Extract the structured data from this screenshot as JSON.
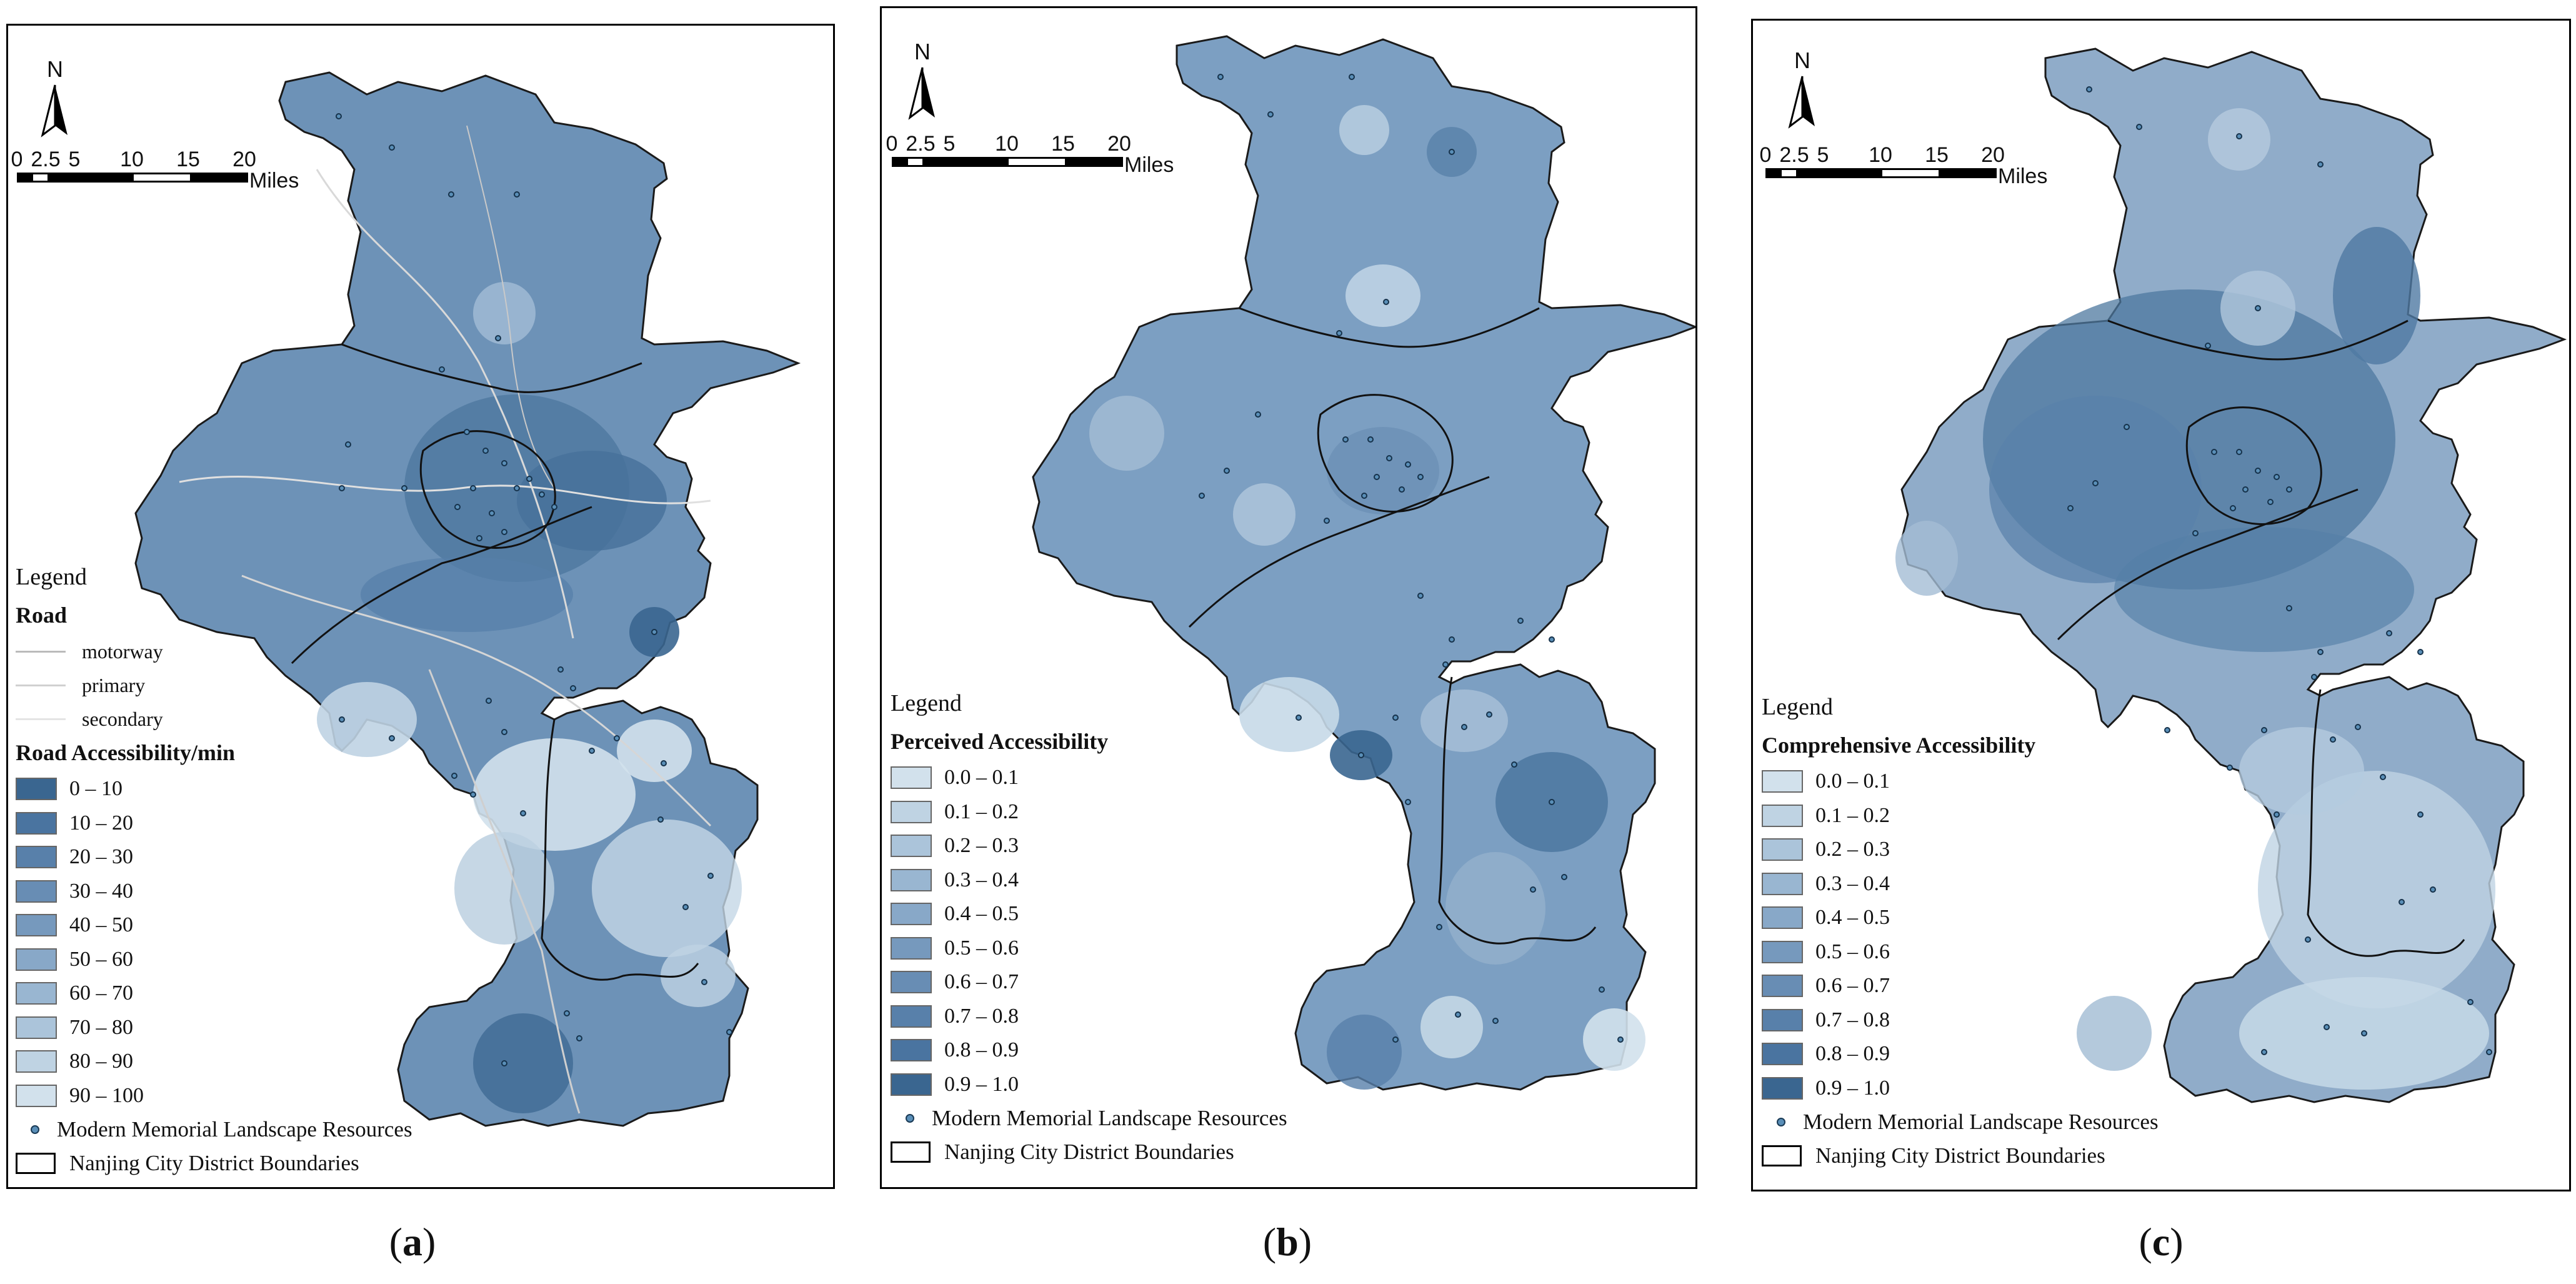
{
  "map_common": {
    "north_label": "N",
    "scale_ticks": [
      "0",
      "2.5",
      "5",
      "10",
      "15",
      "20"
    ],
    "scale_unit": "Miles",
    "legend_title": "Legend",
    "points_label": "Modern Memorial Landscape Resources",
    "boundary_label": "Nanjing City District Boundaries"
  },
  "panels": [
    {
      "caption_letter": "a",
      "road_title": "Road",
      "road_types": [
        "motorway",
        "primary",
        "secondary"
      ],
      "classes_title": "Road Accessibility/min",
      "classes": [
        "0 – 10",
        "10 – 20",
        "20 – 30",
        "30 – 40",
        "40 – 50",
        "50 – 60",
        "60 – 70",
        "70 – 80",
        "80 – 90",
        "90 – 100"
      ],
      "colors": [
        "#3a6690",
        "#4a74a0",
        "#5880aa",
        "#688db4",
        "#7699bd",
        "#88a8c8",
        "#99b6d1",
        "#abc4da",
        "#bfd3e3",
        "#d2e1ec"
      ]
    },
    {
      "caption_letter": "b",
      "classes_title": "Perceived Accessibility",
      "classes": [
        "0.0 – 0.1",
        "0.1 – 0.2",
        "0.2 – 0.3",
        "0.3 – 0.4",
        "0.4 – 0.5",
        "0.5 – 0.6",
        "0.6 – 0.7",
        "0.7 – 0.8",
        "0.8 – 0.9",
        "0.9 – 1.0"
      ],
      "colors": [
        "#d2e1ec",
        "#bfd3e3",
        "#abc4da",
        "#99b6d1",
        "#88a8c8",
        "#7699bd",
        "#688db4",
        "#5880aa",
        "#4a74a0",
        "#3a6690"
      ]
    },
    {
      "caption_letter": "c",
      "classes_title": "Comprehensive Accessibility",
      "classes": [
        "0.0 – 0.1",
        "0.1 – 0.2",
        "0.2 – 0.3",
        "0.3 – 0.4",
        "0.4 – 0.5",
        "0.5 – 0.6",
        "0.6 – 0.7",
        "0.7 – 0.8",
        "0.8 – 0.9",
        "0.9 – 1.0"
      ],
      "colors": [
        "#d2e1ec",
        "#bfd3e3",
        "#abc4da",
        "#99b6d1",
        "#88a8c8",
        "#7699bd",
        "#688db4",
        "#5880aa",
        "#4a74a0",
        "#3a6690"
      ]
    }
  ]
}
